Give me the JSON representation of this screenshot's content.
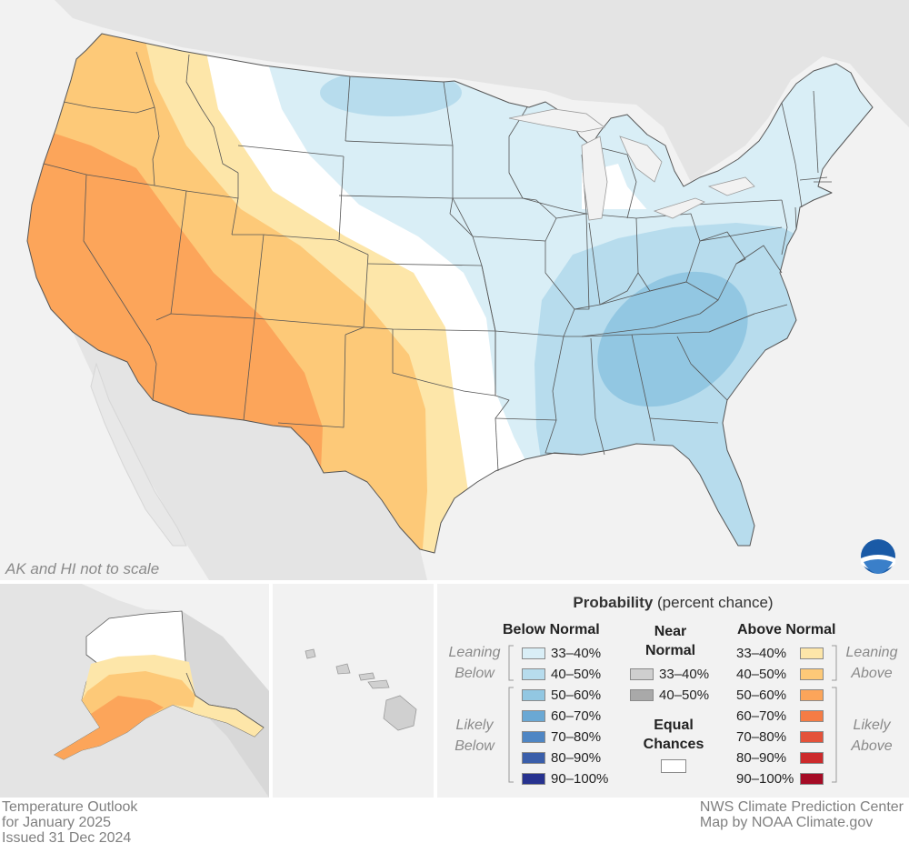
{
  "note": "AK and HI not to scale",
  "footer": {
    "title": "Temperature Outlook",
    "period": "for January 2025",
    "issued": "Issued 31 Dec 2024",
    "credit_1": "NWS Climate Prediction Center",
    "credit_2": "Map by NOAA Climate.gov"
  },
  "logo": {
    "text": "NOAA",
    "icon": "noaa-logo"
  },
  "legend": {
    "title_bold": "Probability",
    "title_rest": " (percent chance)",
    "below": {
      "heading": "Below Normal",
      "leaning": [
        "Leaning",
        "Below"
      ],
      "likely": [
        "Likely",
        "Below"
      ],
      "bins": [
        {
          "label": "33–40%",
          "color": "#d9eef6"
        },
        {
          "label": "40–50%",
          "color": "#b7dced"
        },
        {
          "label": "50–60%",
          "color": "#92c7e2"
        },
        {
          "label": "60–70%",
          "color": "#6aa8d4"
        },
        {
          "label": "70–80%",
          "color": "#4f86c4"
        },
        {
          "label": "80–90%",
          "color": "#3a5eaa"
        },
        {
          "label": "90–100%",
          "color": "#27328f"
        }
      ]
    },
    "near": {
      "heading": [
        "Near",
        "Normal"
      ],
      "bins": [
        {
          "label": "33–40%",
          "color": "#cfcfcf"
        },
        {
          "label": "40–50%",
          "color": "#a9a9a9"
        }
      ]
    },
    "equal": {
      "heading": [
        "Equal",
        "Chances"
      ],
      "color": "#ffffff"
    },
    "above": {
      "heading": "Above Normal",
      "leaning": [
        "Leaning",
        "Above"
      ],
      "likely": [
        "Likely",
        "Above"
      ],
      "bins": [
        {
          "label": "33–40%",
          "color": "#fde6a9"
        },
        {
          "label": "40–50%",
          "color": "#fdc978"
        },
        {
          "label": "50–60%",
          "color": "#fca55a"
        },
        {
          "label": "60–70%",
          "color": "#f57c45"
        },
        {
          "label": "70–80%",
          "color": "#e4523a"
        },
        {
          "label": "80–90%",
          "color": "#cc2a2c"
        },
        {
          "label": "90–100%",
          "color": "#a50b25"
        }
      ]
    }
  },
  "colors": {
    "ocean": "#f2f2f2",
    "land": "#e4e4e4",
    "border": "#555555",
    "panel_frame": "#d8d8d8"
  }
}
